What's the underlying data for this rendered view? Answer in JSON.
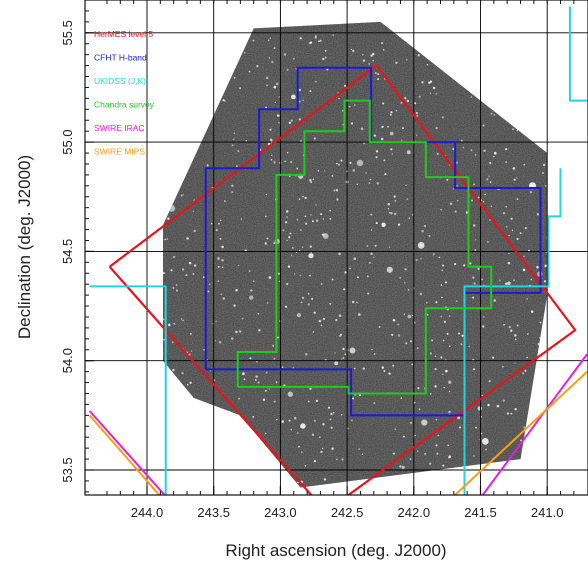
{
  "chart_data": {
    "type": "sky-coverage-map",
    "xlabel": "Right ascension (deg. J2000)",
    "ylabel": "Declination (deg. J2000)",
    "xlim": [
      244.4,
      240.7
    ],
    "ylim": [
      53.37,
      55.6
    ],
    "x_ticks": [
      "244.0",
      "243.5",
      "243.0",
      "242.5",
      "242.0",
      "241.5",
      "241.0"
    ],
    "x_tick_values": [
      244.0,
      243.5,
      243.0,
      242.5,
      242.0,
      241.5,
      241.0
    ],
    "y_ticks": [
      "53.5",
      "54.0",
      "54.5",
      "55.0",
      "55.5"
    ],
    "y_tick_values": [
      53.5,
      54.0,
      54.5,
      55.0,
      55.5
    ],
    "grid": true,
    "legend_position": "top-left",
    "background_image": "grey star-field survey mosaic",
    "series": [
      {
        "name": "HerMES level 5",
        "color": "#e8141c",
        "points": [
          [
            244.28,
            54.43
          ],
          [
            242.28,
            55.35
          ],
          [
            240.79,
            54.14
          ],
          [
            242.66,
            53.31
          ],
          [
            244.28,
            54.43
          ]
        ]
      },
      {
        "name": "CFHT H-band",
        "color": "#1b1bd6",
        "points": [
          [
            243.56,
            53.96
          ],
          [
            243.56,
            54.88
          ],
          [
            243.16,
            54.88
          ],
          [
            243.16,
            55.15
          ],
          [
            242.87,
            55.15
          ],
          [
            242.87,
            55.34
          ],
          [
            242.32,
            55.34
          ],
          [
            242.32,
            55.0
          ],
          [
            241.69,
            55.0
          ],
          [
            241.69,
            54.79
          ],
          [
            241.05,
            54.79
          ],
          [
            241.05,
            54.31
          ],
          [
            241.62,
            54.31
          ],
          [
            241.62,
            53.75
          ],
          [
            242.47,
            53.75
          ],
          [
            242.47,
            53.96
          ],
          [
            243.56,
            53.96
          ]
        ]
      },
      {
        "name": "UKIDSS (J,K)",
        "color": "#22d3e0",
        "points": [
          [
            244.43,
            54.34
          ],
          [
            243.86,
            54.34
          ],
          [
            243.86,
            53.38
          ],
          [
            241.62,
            53.38
          ],
          [
            241.62,
            54.34
          ],
          [
            241.14,
            54.34
          ],
          [
            240.99,
            54.34
          ],
          [
            240.99,
            54.66
          ],
          [
            240.9,
            54.66
          ],
          [
            240.9,
            54.88
          ]
        ]
      },
      {
        "name": "Chandra survey",
        "color": "#1ccd1c",
        "points": [
          [
            243.32,
            53.88
          ],
          [
            243.32,
            54.04
          ],
          [
            243.03,
            54.04
          ],
          [
            243.03,
            54.85
          ],
          [
            242.82,
            54.85
          ],
          [
            242.82,
            55.05
          ],
          [
            242.52,
            55.05
          ],
          [
            242.52,
            55.19
          ],
          [
            242.33,
            55.19
          ],
          [
            242.33,
            55.0
          ],
          [
            241.91,
            55.0
          ],
          [
            241.91,
            54.84
          ],
          [
            241.59,
            54.84
          ],
          [
            241.59,
            54.43
          ],
          [
            241.42,
            54.43
          ],
          [
            241.42,
            54.24
          ],
          [
            241.91,
            54.24
          ],
          [
            241.91,
            53.85
          ],
          [
            242.49,
            53.85
          ],
          [
            242.49,
            53.88
          ],
          [
            243.32,
            53.88
          ]
        ]
      },
      {
        "name": "SWIRE IRAC",
        "color": "#e51ee5",
        "points": [
          [
            244.43,
            53.77
          ],
          [
            243.86,
            53.38
          ],
          [
            241.49,
            53.38
          ],
          [
            240.7,
            54.03
          ]
        ]
      },
      {
        "name": "SWIRE MIPS",
        "color": "#f5a012",
        "points": [
          [
            244.43,
            53.75
          ],
          [
            243.9,
            53.38
          ],
          [
            241.7,
            53.38
          ],
          [
            240.7,
            53.95
          ]
        ]
      }
    ],
    "extra_lines": [
      {
        "color": "#22d3e0",
        "points": [
          [
            240.83,
            55.62
          ],
          [
            240.83,
            55.19
          ],
          [
            240.7,
            55.19
          ]
        ]
      }
    ]
  }
}
